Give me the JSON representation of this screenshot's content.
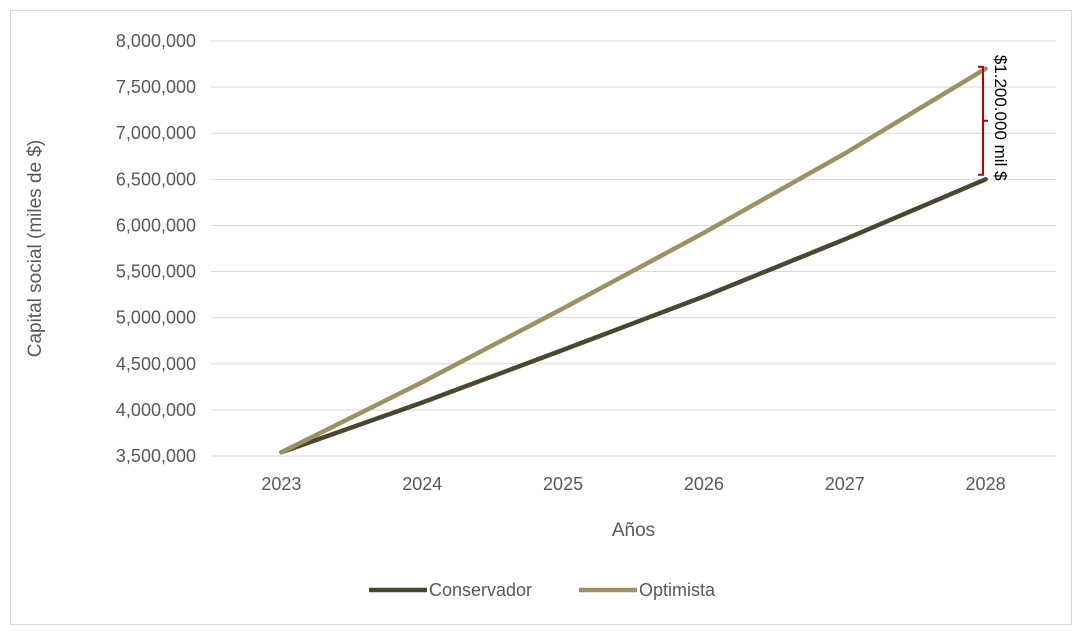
{
  "chart_data": {
    "type": "line",
    "title": "",
    "xlabel": "Años",
    "ylabel": "Capital social (miles de $)",
    "categories": [
      "2023",
      "2024",
      "2025",
      "2026",
      "2027",
      "2028"
    ],
    "ylim": [
      3500000,
      8000000
    ],
    "yticks": [
      3500000,
      4000000,
      4500000,
      5000000,
      5500000,
      6000000,
      6500000,
      7000000,
      7500000,
      8000000
    ],
    "ytick_labels": [
      "3,500,000",
      "4,000,000",
      "4,500,000",
      "5,000,000",
      "5,500,000",
      "6,000,000",
      "6,500,000",
      "7,000,000",
      "7,500,000",
      "8,000,000"
    ],
    "grid": "horizontal",
    "legend_position": "bottom",
    "series": [
      {
        "name": "Conservador",
        "color": "#4a4630",
        "values": [
          3540000,
          4080000,
          4650000,
          5230000,
          5850000,
          6500000
        ]
      },
      {
        "name": "Optimista",
        "color": "#9c9160",
        "values": [
          3540000,
          4300000,
          5100000,
          5920000,
          6780000,
          7700000
        ]
      }
    ],
    "annotation": {
      "text": "$1.200.000 mil $",
      "bracket_from": 7720000,
      "bracket_to": 6550000,
      "color": "#c00000"
    }
  }
}
